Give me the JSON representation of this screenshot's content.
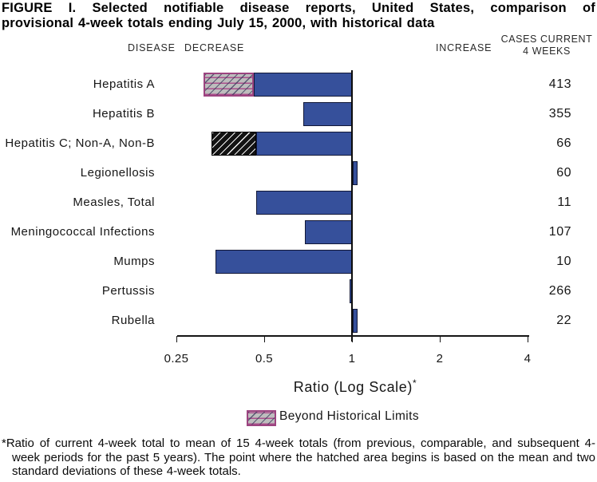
{
  "title": {
    "line1": "FIGURE I. Selected notifiable disease reports, United States, comparison of",
    "line2": "provisional 4-week totals ending July 15, 2000, with historical data"
  },
  "headers": {
    "disease": "DISEASE",
    "decrease": "DECREASE",
    "increase": "INCREASE",
    "cases_line1": "CASES CURRENT",
    "cases_line2": "4 WEEKS"
  },
  "chart_data": {
    "type": "bar",
    "orientation": "horizontal",
    "scale": "log2",
    "baseline_ratio": 1,
    "xlim": [
      0.25,
      4
    ],
    "axis_ticks": [
      0.25,
      0.5,
      1,
      2,
      4
    ],
    "tick_labels": [
      "0.25",
      "0.5",
      "1",
      "2",
      "4"
    ],
    "xlabel": "Ratio (Log Scale)",
    "xlabel_note": "*",
    "grid": false,
    "legend_position": "below-axis",
    "rows": [
      {
        "disease": "Hepatitis A",
        "ratio": 0.31,
        "cases": "413",
        "beyond_limit": true,
        "hatch_to": 0.46,
        "hatch_style": "pink"
      },
      {
        "disease": "Hepatitis B",
        "ratio": 0.68,
        "cases": "355",
        "beyond_limit": false
      },
      {
        "disease": "Hepatitis C; Non-A, Non-B",
        "ratio": 0.33,
        "cases": "66",
        "beyond_limit": true,
        "hatch_to": 0.47,
        "hatch_style": "black"
      },
      {
        "disease": "Legionellosis",
        "ratio": 1.04,
        "cases": "60",
        "beyond_limit": false
      },
      {
        "disease": "Measles, Total",
        "ratio": 0.47,
        "cases": "11",
        "beyond_limit": false
      },
      {
        "disease": "Meningococcal Infections",
        "ratio": 0.69,
        "cases": "107",
        "beyond_limit": false
      },
      {
        "disease": "Mumps",
        "ratio": 0.34,
        "cases": "10",
        "beyond_limit": false
      },
      {
        "disease": "Pertussis",
        "ratio": 0.98,
        "cases": "266",
        "beyond_limit": false
      },
      {
        "disease": "Rubella",
        "ratio": 1.04,
        "cases": "22",
        "beyond_limit": false
      }
    ],
    "colors": {
      "bar": "#36509b",
      "bar_border": "#121838",
      "hatch_pink_bg": "#bdbdbd",
      "hatch_pink_line": "#aa4e8c",
      "hatch_black_bg": "#131313",
      "hatch_black_line": "#ffffff"
    }
  },
  "legend": {
    "label": "Beyond Historical Limits"
  },
  "footnote": {
    "text": "*Ratio of current 4-week total to mean of 15 4-week totals (from previous, comparable, and subsequent 4-week periods for the past 5 years). The point where the hatched area begins is based on the mean and two standard deviations of these 4-week totals."
  }
}
